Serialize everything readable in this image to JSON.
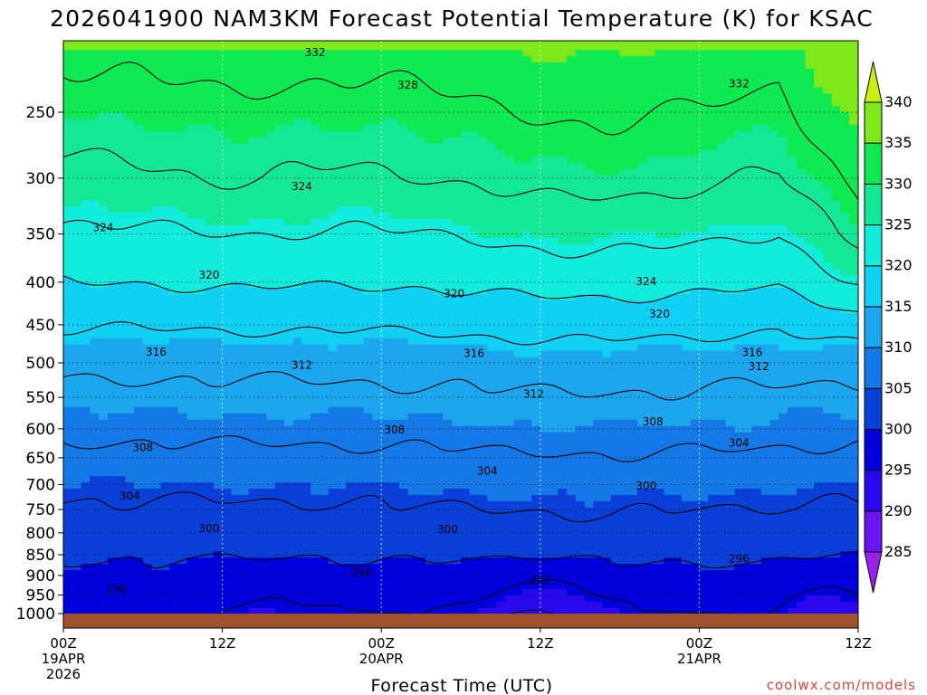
{
  "chart_data": {
    "type": "heatmap",
    "title": "2026041900 NAM3KM Forecast Potential Temperature (K) for KSAC",
    "xlabel": "Forecast Time (UTC)",
    "ylabel": "",
    "credit": "coolwx.com/models",
    "x_hours_range": [
      0,
      60
    ],
    "y_pressure_range_hPa": [
      1000,
      210
    ],
    "y_ticks": [
      1000,
      950,
      900,
      850,
      800,
      750,
      700,
      650,
      600,
      550,
      500,
      450,
      400,
      350,
      300,
      250
    ],
    "y_tick_labels": [
      "1000",
      "950",
      "900",
      "850",
      "800",
      "750",
      "700",
      "650",
      "600",
      "550",
      "500",
      "450",
      "400",
      "350",
      "300",
      "250"
    ],
    "x_ticks": [
      {
        "hour": 0,
        "line1": "00Z",
        "line2": "19APR",
        "line3": "2026"
      },
      {
        "hour": 12,
        "line1": "12Z",
        "line2": "",
        "line3": ""
      },
      {
        "hour": 24,
        "line1": "00Z",
        "line2": "20APR",
        "line3": ""
      },
      {
        "hour": 36,
        "line1": "12Z",
        "line2": "",
        "line3": ""
      },
      {
        "hour": 48,
        "line1": "00Z",
        "line2": "21APR",
        "line3": ""
      },
      {
        "hour": 60,
        "line1": "12Z",
        "line2": "",
        "line3": ""
      }
    ],
    "colorbar": {
      "levels": [
        285,
        290,
        295,
        300,
        305,
        310,
        315,
        320,
        325,
        330,
        335,
        340
      ],
      "labels": [
        "285",
        "290",
        "295",
        "300",
        "305",
        "310",
        "315",
        "320",
        "325",
        "330",
        "335",
        "340"
      ],
      "colors": [
        "#9a20ec",
        "#6a14f0",
        "#2a08ee",
        "#0000dc",
        "#0a40d8",
        "#1478e6",
        "#1ca6ee",
        "#10d0f4",
        "#12ecdc",
        "#14e896",
        "#10ea52",
        "#7ee81a",
        "#c8f00e"
      ]
    },
    "contour_levels": [
      292,
      296,
      300,
      304,
      308,
      312,
      316,
      320,
      324,
      328,
      332
    ],
    "contour_labels": [
      {
        "text": "332",
        "hour": 19.0,
        "p": 212
      },
      {
        "text": "328",
        "hour": 26.0,
        "p": 232
      },
      {
        "text": "332",
        "hour": 51.0,
        "p": 231
      },
      {
        "text": "324",
        "hour": 18.0,
        "p": 307
      },
      {
        "text": "324",
        "hour": 3.0,
        "p": 344
      },
      {
        "text": "320",
        "hour": 11.0,
        "p": 392
      },
      {
        "text": "320",
        "hour": 29.5,
        "p": 413
      },
      {
        "text": "324",
        "hour": 44.0,
        "p": 399
      },
      {
        "text": "320",
        "hour": 45.0,
        "p": 437
      },
      {
        "text": "316",
        "hour": 7.0,
        "p": 485
      },
      {
        "text": "316",
        "hour": 31.0,
        "p": 487
      },
      {
        "text": "316",
        "hour": 52.0,
        "p": 486
      },
      {
        "text": "312",
        "hour": 18.0,
        "p": 503
      },
      {
        "text": "312",
        "hour": 52.5,
        "p": 505
      },
      {
        "text": "312",
        "hour": 35.5,
        "p": 545
      },
      {
        "text": "308",
        "hour": 25.0,
        "p": 602
      },
      {
        "text": "308",
        "hour": 44.5,
        "p": 588
      },
      {
        "text": "308",
        "hour": 6.0,
        "p": 632
      },
      {
        "text": "304",
        "hour": 51.0,
        "p": 624
      },
      {
        "text": "304",
        "hour": 32.0,
        "p": 674
      },
      {
        "text": "304",
        "hour": 5.0,
        "p": 722
      },
      {
        "text": "300",
        "hour": 44.0,
        "p": 703
      },
      {
        "text": "300",
        "hour": 11.0,
        "p": 790
      },
      {
        "text": "300",
        "hour": 29.0,
        "p": 792
      },
      {
        "text": "296",
        "hour": 51.0,
        "p": 860
      },
      {
        "text": "296",
        "hour": 22.5,
        "p": 893
      },
      {
        "text": "292",
        "hour": 36.0,
        "p": 913
      },
      {
        "text": "296",
        "hour": 4.0,
        "p": 935
      }
    ],
    "sample_profile_hour_0": [
      {
        "p": 1000,
        "theta": 297
      },
      {
        "p": 900,
        "theta": 299
      },
      {
        "p": 800,
        "theta": 302
      },
      {
        "p": 700,
        "theta": 305
      },
      {
        "p": 600,
        "theta": 309
      },
      {
        "p": 500,
        "theta": 313
      },
      {
        "p": 400,
        "theta": 320
      },
      {
        "p": 300,
        "theta": 327
      },
      {
        "p": 250,
        "theta": 330
      }
    ]
  }
}
